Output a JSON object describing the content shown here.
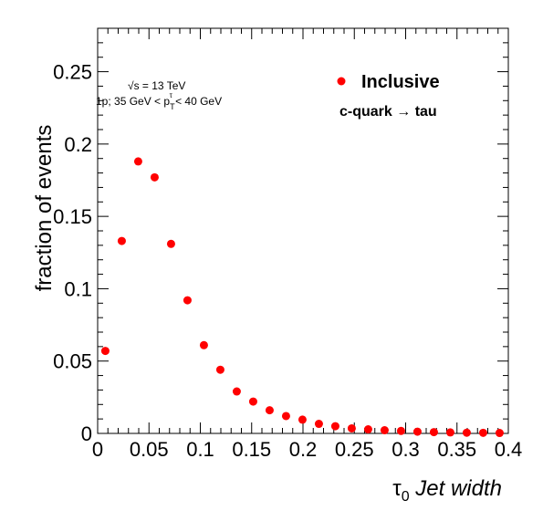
{
  "chart_data": {
    "type": "scatter",
    "xlabel_symbol": "τ",
    "xlabel_subscript": "0",
    "xlabel_text": "Jet width",
    "ylabel": "fraction of events",
    "xlim": [
      0,
      0.4
    ],
    "ylim": [
      0,
      0.28
    ],
    "x_ticks": [
      "0",
      "0.05",
      "0.1",
      "0.15",
      "0.2",
      "0.25",
      "0.3",
      "0.35",
      "0.4"
    ],
    "y_ticks": [
      "0",
      "0.05",
      "0.1",
      "0.15",
      "0.2",
      "0.25"
    ],
    "annotation_line1": "√s = 13 TeV",
    "annotation_line2": "1p; 35 GeV < p",
    "annotation_line2_sub": "T",
    "annotation_line2_sup": "τ",
    "annotation_line2_end": " < 40 GeV",
    "legend_label": "Inclusive",
    "legend_subtitle": "c-quark → tau",
    "marker_color": "#ff0000",
    "series": [
      {
        "name": "Inclusive",
        "x": [
          0.0075,
          0.0235,
          0.0395,
          0.0555,
          0.0715,
          0.0875,
          0.1035,
          0.1195,
          0.1355,
          0.1515,
          0.1675,
          0.1835,
          0.1995,
          0.2155,
          0.2315,
          0.2475,
          0.2635,
          0.2795,
          0.2955,
          0.3115,
          0.3275,
          0.3435,
          0.3595,
          0.3755,
          0.3915
        ],
        "values": [
          0.057,
          0.133,
          0.188,
          0.177,
          0.131,
          0.092,
          0.061,
          0.044,
          0.029,
          0.022,
          0.016,
          0.012,
          0.0095,
          0.0066,
          0.005,
          0.0035,
          0.0028,
          0.0022,
          0.0017,
          0.0012,
          0.0009,
          0.0007,
          0.0005,
          0.0004,
          0.0003
        ]
      }
    ]
  }
}
